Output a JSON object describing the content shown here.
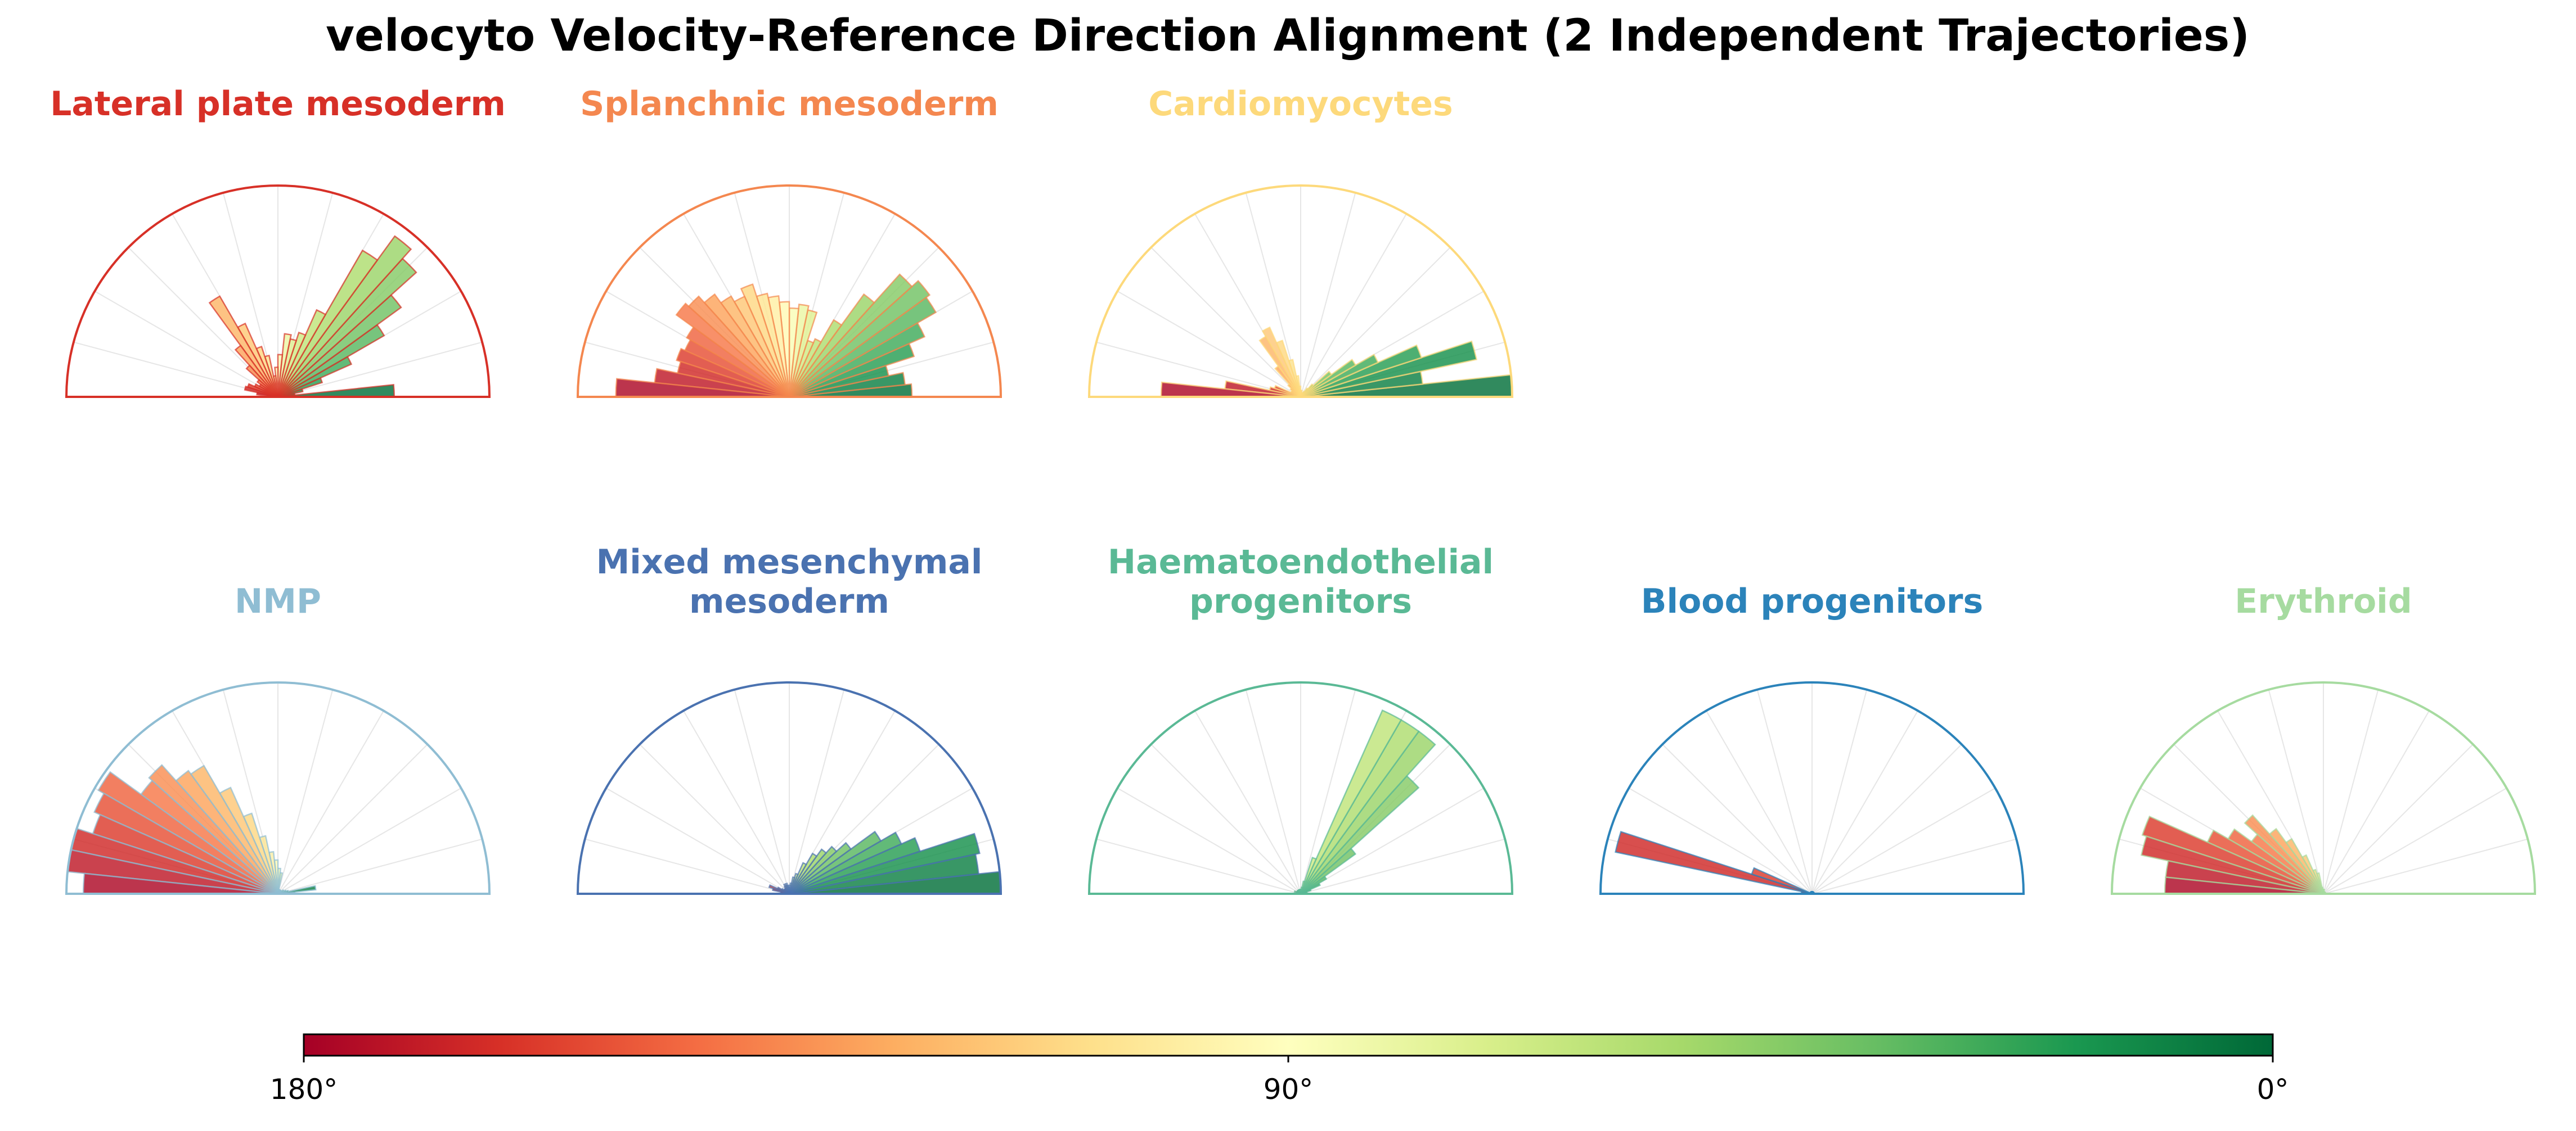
{
  "title": "velocyto Velocity-Reference Direction Alignment (2 Independent Trajectories)",
  "colorbar": {
    "labels": [
      "180°",
      "90°",
      "0°"
    ],
    "range": [
      180,
      0
    ],
    "colormap": "RdYlGn"
  },
  "chart_data": [
    {
      "type": "polar-histogram",
      "title": "Lateral plate mesoderm",
      "color": "#d73027",
      "bin_width_deg": 6,
      "values": [
        0.55,
        0.08,
        0.12,
        0.22,
        0.38,
        0.58,
        0.72,
        0.88,
        0.94,
        0.8,
        0.45,
        0.32,
        0.28,
        0.3,
        0.2,
        0.14,
        0.1,
        0.2,
        0.25,
        0.38,
        0.55,
        0.3,
        0.2,
        0.12,
        0.1,
        0.12,
        0.15,
        0.16,
        0.1,
        0.05
      ]
    },
    {
      "type": "polar-histogram",
      "title": "Splanchnic mesoderm",
      "color": "#f4874f",
      "bin_width_deg": 6,
      "values": [
        0.58,
        0.55,
        0.48,
        0.62,
        0.7,
        0.8,
        0.82,
        0.78,
        0.6,
        0.42,
        0.3,
        0.28,
        0.42,
        0.44,
        0.42,
        0.45,
        0.48,
        0.5,
        0.56,
        0.52,
        0.55,
        0.6,
        0.64,
        0.66,
        0.56,
        0.54,
        0.56,
        0.54,
        0.64,
        0.82
      ]
    },
    {
      "type": "polar-histogram",
      "title": "Cardiomyocytes",
      "color": "#fdd97b",
      "bin_width_deg": 6,
      "values": [
        1.0,
        0.58,
        0.85,
        0.6,
        0.4,
        0.3,
        0.18,
        0.08,
        0.05,
        0.03,
        0.02,
        0.02,
        0.02,
        0.03,
        0.03,
        0.05,
        0.1,
        0.18,
        0.28,
        0.36,
        0.33,
        0.18,
        0.08,
        0.06,
        0.05,
        0.05,
        0.13,
        0.15,
        0.36,
        0.66
      ]
    },
    {
      "type": "polar-histogram",
      "title": "NMP",
      "color": "#8fbdd3",
      "bin_width_deg": 6,
      "values": [
        0.08,
        0.18,
        0.05,
        0.04,
        0.03,
        0.03,
        0.02,
        0.02,
        0.02,
        0.02,
        0.02,
        0.02,
        0.02,
        0.1,
        0.12,
        0.16,
        0.2,
        0.28,
        0.4,
        0.55,
        0.7,
        0.72,
        0.82,
        0.8,
        0.98,
        0.95,
        0.92,
        1.0,
        1.0,
        0.92
      ]
    },
    {
      "type": "polar-histogram",
      "title": "Mixed mesenchymal mesoderm",
      "color": "#4a72b0",
      "bin_width_deg": 6,
      "values": [
        1.0,
        0.9,
        0.92,
        0.65,
        0.58,
        0.5,
        0.36,
        0.3,
        0.26,
        0.22,
        0.16,
        0.1,
        0.08,
        0.05,
        0.04,
        0.03,
        0.04,
        0.05,
        0.04,
        0.05,
        0.04,
        0.03,
        0.03,
        0.03,
        0.04,
        0.06,
        0.1,
        0.08,
        0.04,
        0.02
      ]
    },
    {
      "type": "polar-histogram",
      "title": "Haematoendothelial progenitors",
      "color": "#5ab995",
      "bin_width_deg": 6,
      "values": [
        0.02,
        0.02,
        0.03,
        0.05,
        0.1,
        0.14,
        0.32,
        0.75,
        0.95,
        0.95,
        0.95,
        0.18,
        0.06,
        0.03,
        0.02,
        0.02,
        0.02,
        0.02,
        0.02,
        0.02,
        0.02,
        0.02,
        0.02,
        0.02,
        0.02,
        0.02,
        0.03,
        0.02,
        0.02,
        0.01
      ]
    },
    {
      "type": "polar-histogram",
      "title": "Blood progenitors",
      "color": "#2b83ba",
      "bin_width_deg": 6,
      "values": [
        0.01,
        0.01,
        0.01,
        0.01,
        0.01,
        0.01,
        0.01,
        0.01,
        0.01,
        0.01,
        0.01,
        0.01,
        0.01,
        0.01,
        0.01,
        0.01,
        0.01,
        0.01,
        0.01,
        0.01,
        0.01,
        0.01,
        0.01,
        0.01,
        0.01,
        0.01,
        0.3,
        0.95,
        0.05,
        0.01
      ]
    },
    {
      "type": "polar-histogram",
      "title": "Erythroid",
      "color": "#a6dba0",
      "bin_width_deg": 6,
      "values": [
        0.01,
        0.01,
        0.01,
        0.01,
        0.01,
        0.01,
        0.01,
        0.01,
        0.01,
        0.01,
        0.01,
        0.01,
        0.01,
        0.02,
        0.02,
        0.02,
        0.03,
        0.1,
        0.12,
        0.2,
        0.3,
        0.38,
        0.5,
        0.42,
        0.52,
        0.6,
        0.9,
        0.88,
        0.75,
        0.75
      ]
    }
  ]
}
